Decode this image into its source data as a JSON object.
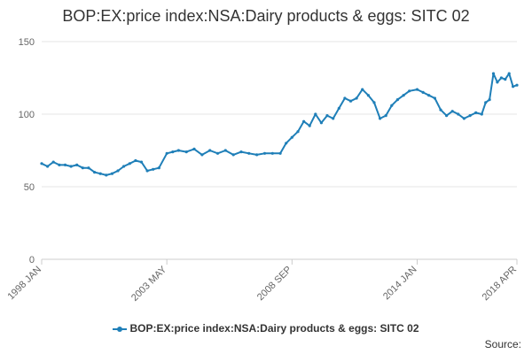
{
  "colors": {
    "series": "#1f7fb8",
    "grid": "#e6e6e6",
    "axis": "#cccccc"
  },
  "legend": {
    "label": "BOP:EX:price index:NSA:Dairy products & eggs: SITC 02"
  },
  "source": "Source:",
  "chart_data": {
    "type": "line",
    "title": "BOP:EX:price index:NSA:Dairy products & eggs: SITC 02",
    "xlabel": "",
    "ylabel": "",
    "ylim": [
      0,
      150
    ],
    "yticks": [
      0,
      50,
      100,
      150
    ],
    "x_tick_labels": [
      "1998 JAN",
      "2003 MAY",
      "2008 SEP",
      "2014 JAN",
      "2018 APR"
    ],
    "x_range": [
      "1998 JAN",
      "2018 APR"
    ],
    "legend_position": "bottom",
    "grid": true,
    "series": [
      {
        "name": "BOP:EX:price index:NSA:Dairy products & eggs: SITC 02",
        "x": [
          "1998 JAN",
          "1998 APR",
          "1998 JUL",
          "1998 OCT",
          "1999 JAN",
          "1999 APR",
          "1999 JUL",
          "1999 OCT",
          "2000 JAN",
          "2000 APR",
          "2000 JUL",
          "2000 OCT",
          "2001 JAN",
          "2001 APR",
          "2001 JUL",
          "2001 OCT",
          "2002 JAN",
          "2002 APR",
          "2002 JUL",
          "2002 OCT",
          "2003 JAN",
          "2003 MAY",
          "2003 AUG",
          "2003 NOV",
          "2004 MAR",
          "2004 JUL",
          "2004 NOV",
          "2005 MAR",
          "2005 JUL",
          "2005 NOV",
          "2006 MAR",
          "2006 JUL",
          "2006 NOV",
          "2007 MAR",
          "2007 JUL",
          "2007 NOV",
          "2008 MAR",
          "2008 JUN",
          "2008 SEP",
          "2008 DEC",
          "2009 MAR",
          "2009 JUN",
          "2009 SEP",
          "2009 DEC",
          "2010 MAR",
          "2010 JUN",
          "2010 SEP",
          "2010 DEC",
          "2011 MAR",
          "2011 JUN",
          "2011 SEP",
          "2011 DEC",
          "2012 MAR",
          "2012 JUN",
          "2012 SEP",
          "2012 DEC",
          "2013 MAR",
          "2013 JUN",
          "2013 SEP",
          "2014 JAN",
          "2014 APR",
          "2014 JUL",
          "2014 OCT",
          "2015 JAN",
          "2015 APR",
          "2015 JUL",
          "2015 OCT",
          "2016 JAN",
          "2016 APR",
          "2016 JUL",
          "2016 OCT",
          "2016 DEC",
          "2017 FEB",
          "2017 APR",
          "2017 JUN",
          "2017 AUG",
          "2017 OCT",
          "2017 DEC",
          "2018 FEB",
          "2018 APR"
        ],
        "values": [
          66,
          64,
          67,
          65,
          65,
          64,
          65,
          63,
          63,
          60,
          59,
          58,
          59,
          61,
          64,
          66,
          68,
          67,
          61,
          62,
          63,
          73,
          74,
          75,
          74,
          76,
          72,
          75,
          73,
          75,
          72,
          74,
          73,
          72,
          73,
          73,
          73,
          80,
          84,
          88,
          95,
          92,
          100,
          94,
          99,
          97,
          104,
          111,
          109,
          111,
          117,
          113,
          108,
          97,
          99,
          106,
          110,
          113,
          116,
          117,
          115,
          113,
          111,
          103,
          99,
          102,
          100,
          97,
          99,
          101,
          100,
          108,
          110,
          128,
          122,
          125,
          124,
          128,
          119,
          120
        ]
      }
    ]
  }
}
